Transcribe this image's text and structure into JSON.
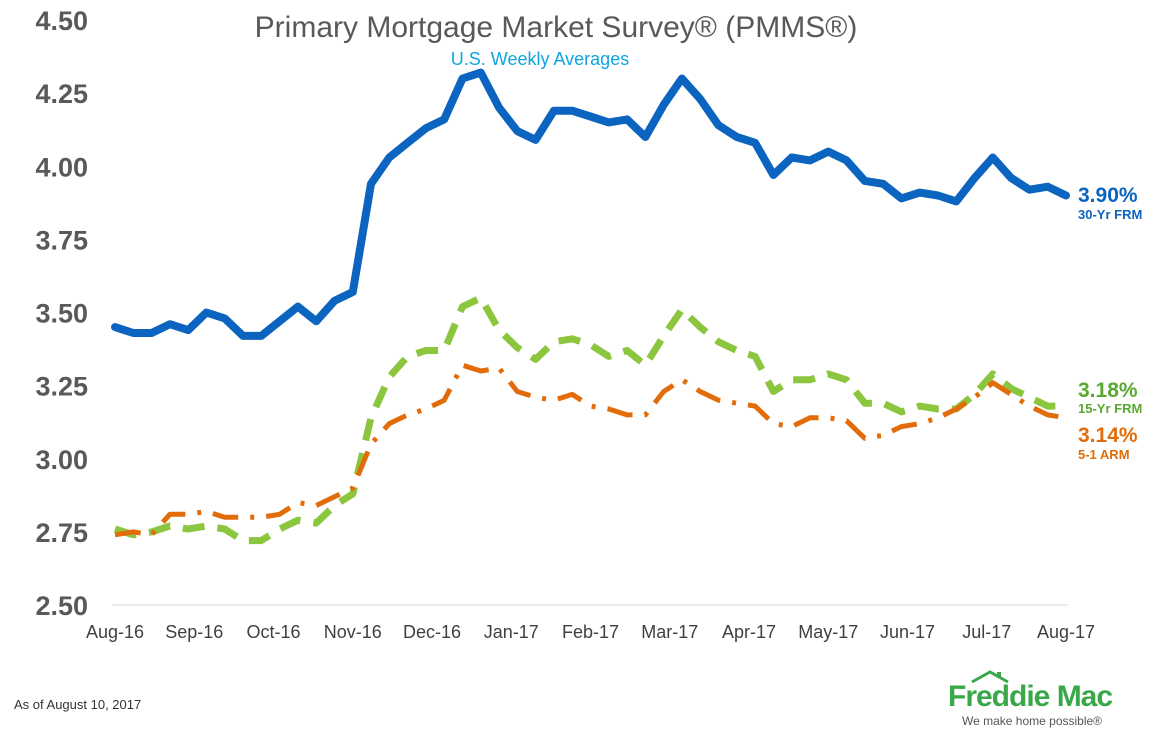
{
  "chart_data": {
    "type": "line",
    "title": "Primary Mortgage Market Survey® (PMMS®)",
    "subtitle": "U.S. Weekly Averages",
    "xlabel": "",
    "ylabel": "",
    "ylim": [
      2.5,
      4.5
    ],
    "yticks": [
      "4.50",
      "4.25",
      "4.00",
      "3.75",
      "3.50",
      "3.25",
      "3.00",
      "2.75",
      "2.50"
    ],
    "xticks": [
      "Aug-16",
      "Sep-16",
      "Oct-16",
      "Nov-16",
      "Dec-16",
      "Jan-17",
      "Feb-17",
      "Mar-17",
      "Apr-17",
      "May-17",
      "Jun-17",
      "Jul-17",
      "Aug-17"
    ],
    "grid": false,
    "series": [
      {
        "name": "30-Yr FRM",
        "end_label": "3.90%",
        "color": "#0b64bf",
        "style": "solid",
        "values": [
          3.45,
          3.43,
          3.43,
          3.46,
          3.44,
          3.5,
          3.48,
          3.42,
          3.42,
          3.47,
          3.52,
          3.47,
          3.54,
          3.57,
          3.94,
          4.03,
          4.08,
          4.13,
          4.16,
          4.3,
          4.32,
          4.2,
          4.12,
          4.09,
          4.19,
          4.19,
          4.17,
          4.15,
          4.16,
          4.1,
          4.21,
          4.3,
          4.23,
          4.14,
          4.1,
          4.08,
          3.97,
          4.03,
          4.02,
          4.05,
          4.02,
          3.95,
          3.94,
          3.89,
          3.91,
          3.9,
          3.88,
          3.96,
          4.03,
          3.96,
          3.92,
          3.93,
          3.9
        ]
      },
      {
        "name": "15-Yr FRM",
        "end_label": "3.18%",
        "color": "#8cc63f",
        "style": "dashed",
        "values": [
          2.76,
          2.74,
          2.75,
          2.77,
          2.76,
          2.77,
          2.76,
          2.72,
          2.72,
          2.76,
          2.79,
          2.78,
          2.84,
          2.88,
          3.14,
          3.28,
          3.35,
          3.37,
          3.37,
          3.52,
          3.55,
          3.44,
          3.38,
          3.34,
          3.4,
          3.41,
          3.39,
          3.35,
          3.37,
          3.32,
          3.42,
          3.51,
          3.45,
          3.4,
          3.37,
          3.35,
          3.23,
          3.27,
          3.27,
          3.29,
          3.27,
          3.19,
          3.19,
          3.16,
          3.18,
          3.17,
          3.17,
          3.22,
          3.29,
          3.24,
          3.21,
          3.18,
          3.18
        ]
      },
      {
        "name": "5-1 ARM",
        "end_label": "3.14%",
        "color": "#e36c0a",
        "style": "dashdot",
        "values": [
          2.74,
          2.75,
          2.74,
          2.81,
          2.81,
          2.82,
          2.8,
          2.8,
          2.8,
          2.81,
          2.85,
          2.84,
          2.87,
          2.9,
          3.05,
          3.12,
          3.15,
          3.17,
          3.2,
          3.32,
          3.3,
          3.31,
          3.23,
          3.21,
          3.2,
          3.22,
          3.18,
          3.17,
          3.15,
          3.15,
          3.23,
          3.27,
          3.23,
          3.2,
          3.19,
          3.18,
          3.12,
          3.11,
          3.14,
          3.14,
          3.13,
          3.07,
          3.08,
          3.11,
          3.12,
          3.14,
          3.17,
          3.21,
          3.26,
          3.22,
          3.18,
          3.15,
          3.14
        ]
      }
    ]
  },
  "footer": {
    "note": "As of August 10, 2017"
  },
  "logo": {
    "name": "Freddie Mac",
    "tagline": "We make home possible®"
  }
}
